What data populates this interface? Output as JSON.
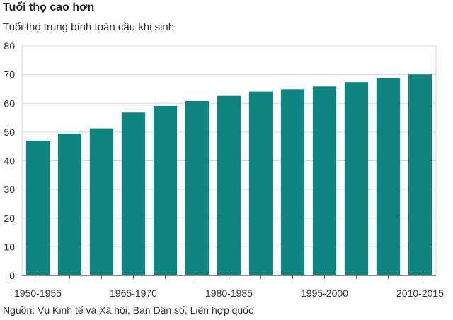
{
  "header": {
    "title": "Tuổi thọ cao hơn",
    "subtitle": "Tuổi thọ trung bình toàn cầu khi sinh"
  },
  "footer": {
    "source": "Nguồn: Vụ Kinh tế và Xã hội, Ban Dân số, Liên hợp quốc"
  },
  "colors": {
    "bar": "#0e8580",
    "grid": "#d9d9d9",
    "axis": "#666666",
    "panel_border": "#cfcfcf"
  },
  "chart_data": {
    "type": "bar",
    "categories": [
      "1950-1955",
      "1955-1960",
      "1960-1965",
      "1965-1970",
      "1970-1975",
      "1975-1980",
      "1980-1985",
      "1985-1990",
      "1990-1995",
      "1995-2000",
      "2000-2005",
      "2005-2010",
      "2010-2015"
    ],
    "visible_x_tick_labels": [
      "1950-1955",
      "1965-1970",
      "1980-1985",
      "1995-2000",
      "2010-2015"
    ],
    "values": [
      47,
      49.5,
      51.3,
      56.8,
      59.1,
      60.8,
      62.6,
      64.1,
      64.9,
      65.9,
      67.4,
      68.8,
      70.1
    ],
    "title": "Tuổi thọ cao hơn",
    "subtitle": "Tuổi thọ trung bình toàn cầu khi sinh",
    "ylim": [
      0,
      80
    ],
    "yticks": [
      0,
      10,
      20,
      30,
      40,
      50,
      60,
      70,
      80
    ],
    "grid": true
  }
}
